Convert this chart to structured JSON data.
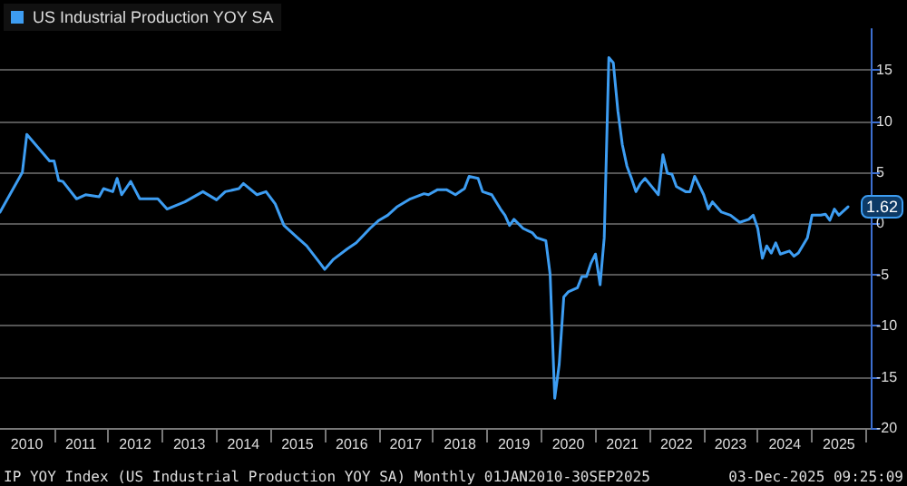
{
  "chart_data": {
    "type": "line",
    "x": [
      "2010-01",
      "2010-06",
      "2010-07",
      "2010-12",
      "2011-01",
      "2011-02",
      "2011-03",
      "2011-06",
      "2011-08",
      "2011-11",
      "2011-12",
      "2012-02",
      "2012-03",
      "2012-04",
      "2012-06",
      "2012-08",
      "2012-12",
      "2013-02",
      "2013-06",
      "2013-10",
      "2014-01",
      "2014-03",
      "2014-06",
      "2014-07",
      "2014-10",
      "2014-12",
      "2015-02",
      "2015-04",
      "2015-07",
      "2015-09",
      "2015-12",
      "2016-01",
      "2016-03",
      "2016-06",
      "2016-08",
      "2016-11",
      "2017-01",
      "2017-03",
      "2017-05",
      "2017-08",
      "2017-11",
      "2017-12",
      "2018-02",
      "2018-04",
      "2018-06",
      "2018-08",
      "2018-09",
      "2018-11",
      "2018-12",
      "2019-02",
      "2019-04",
      "2019-05",
      "2019-06",
      "2019-07",
      "2019-09",
      "2019-11",
      "2019-12",
      "2020-02",
      "2020-03",
      "2020-04",
      "2020-05",
      "2020-06",
      "2020-07",
      "2020-09",
      "2020-10",
      "2020-11",
      "2020-12",
      "2021-01",
      "2021-02",
      "2021-03",
      "2021-04",
      "2021-05",
      "2021-06",
      "2021-07",
      "2021-08",
      "2021-09",
      "2021-10",
      "2021-11",
      "2021-12",
      "2022-02",
      "2022-03",
      "2022-04",
      "2022-05",
      "2022-06",
      "2022-07",
      "2022-09",
      "2022-10",
      "2022-11",
      "2023-01",
      "2023-02",
      "2023-03",
      "2023-05",
      "2023-07",
      "2023-09",
      "2023-11",
      "2023-12",
      "2024-01",
      "2024-02",
      "2024-03",
      "2024-04",
      "2024-05",
      "2024-06",
      "2024-08",
      "2024-09",
      "2024-10",
      "2024-12",
      "2025-01",
      "2025-03",
      "2025-04",
      "2025-05",
      "2025-06",
      "2025-07",
      "2025-09"
    ],
    "series": [
      {
        "name": "US Industrial Production YOY SA",
        "color": "#3d9df2",
        "values": [
          1.1,
          5.0,
          8.7,
          6.1,
          6.1,
          4.2,
          4.1,
          2.4,
          2.8,
          2.6,
          3.4,
          3.1,
          4.4,
          2.8,
          4.1,
          2.4,
          2.4,
          1.4,
          2.1,
          3.1,
          2.3,
          3.1,
          3.4,
          3.9,
          2.8,
          3.1,
          1.9,
          -0.2,
          -1.4,
          -2.2,
          -3.9,
          -4.5,
          -3.5,
          -2.5,
          -1.9,
          -0.5,
          0.3,
          0.8,
          1.6,
          2.4,
          2.9,
          2.8,
          3.3,
          3.3,
          2.8,
          3.4,
          4.6,
          4.4,
          3.1,
          2.8,
          1.4,
          0.8,
          -0.2,
          0.4,
          -0.5,
          -0.9,
          -1.4,
          -1.7,
          -5.0,
          -17.1,
          -13.8,
          -7.2,
          -6.7,
          -6.3,
          -5.2,
          -5.2,
          -3.9,
          -3.0,
          -6.0,
          -1.4,
          16.2,
          15.7,
          11.0,
          7.7,
          5.6,
          4.4,
          3.1,
          3.9,
          4.4,
          3.3,
          2.8,
          6.7,
          4.9,
          4.8,
          3.6,
          3.1,
          3.1,
          4.6,
          2.8,
          1.4,
          2.1,
          1.1,
          0.8,
          0.1,
          0.4,
          0.8,
          -0.5,
          -3.4,
          -2.2,
          -2.9,
          -1.9,
          -3.0,
          -2.7,
          -3.2,
          -2.9,
          -1.4,
          0.8,
          0.8,
          0.9,
          0.3,
          1.4,
          0.8,
          1.62
        ],
        "value_labels": [
          null,
          null,
          null,
          null,
          null,
          null,
          null,
          null,
          null,
          null,
          null,
          null,
          null,
          null,
          null,
          null,
          null,
          null,
          null,
          null,
          null,
          null,
          null,
          null,
          null,
          null,
          null,
          null,
          null,
          null,
          null,
          null,
          null,
          null,
          null,
          null,
          null,
          null,
          null,
          null,
          null,
          null,
          null,
          null,
          null,
          null,
          null,
          null,
          null,
          null,
          null,
          null,
          null,
          null,
          null,
          null,
          null,
          null,
          null,
          null,
          null,
          null,
          null,
          null,
          null,
          null,
          null,
          null,
          null,
          null,
          null,
          null,
          null,
          null,
          null,
          null,
          null,
          null,
          null,
          null,
          null,
          null,
          null,
          null,
          null,
          null,
          null,
          null,
          null,
          null,
          null,
          null,
          null,
          null,
          null,
          null,
          null,
          null,
          null,
          null,
          null,
          null,
          null,
          null,
          null,
          null,
          null,
          null,
          null,
          null,
          null,
          null,
          "1.62"
        ]
      }
    ],
    "xlim": [
      "2010-01",
      "2026-02"
    ],
    "xticks": [
      {
        "value": "2010-07",
        "label": "2010"
      },
      {
        "value": "2011",
        "label": null
      },
      {
        "value": "2011-07",
        "label": "2011"
      },
      {
        "value": "2012",
        "label": null
      },
      {
        "value": "2012-07",
        "label": "2012"
      },
      {
        "value": "2013",
        "label": null
      },
      {
        "value": "2013-07",
        "label": "2013"
      },
      {
        "value": "2014",
        "label": null
      },
      {
        "value": "2014-07",
        "label": "2014"
      },
      {
        "value": "2015",
        "label": null
      },
      {
        "value": "2015-07",
        "label": "2015"
      },
      {
        "value": "2016",
        "label": null
      },
      {
        "value": "2016-07",
        "label": "2016"
      },
      {
        "value": "2017",
        "label": null
      },
      {
        "value": "2017-07",
        "label": "2017"
      },
      {
        "value": "2018",
        "label": null
      },
      {
        "value": "2018-07",
        "label": "2018"
      },
      {
        "value": "2019",
        "label": null
      },
      {
        "value": "2019-07",
        "label": "2019"
      },
      {
        "value": "2020",
        "label": null
      },
      {
        "value": "2020-07",
        "label": "2020"
      },
      {
        "value": "2021",
        "label": null
      },
      {
        "value": "2021-07",
        "label": "2021"
      },
      {
        "value": "2022",
        "label": null
      },
      {
        "value": "2022-07",
        "label": "2022"
      },
      {
        "value": "2023",
        "label": null
      },
      {
        "value": "2023-07",
        "label": "2023"
      },
      {
        "value": "2024",
        "label": null
      },
      {
        "value": "2024-07",
        "label": "2024"
      },
      {
        "value": "2025",
        "label": null
      },
      {
        "value": "2025-07",
        "label": "2025"
      },
      {
        "value": "2026",
        "label": null
      }
    ],
    "ylim": [
      -20,
      19
    ],
    "yticks": [
      -20,
      -15,
      -10,
      -5,
      0,
      5,
      10,
      15
    ],
    "grid": "y",
    "legend": "top left",
    "marker": "none",
    "line_style": "solid",
    "annotations": [
      "IP YOY Index (US Industrial Production YOY SA) Monthly 01JAN2010-30SEP2025",
      "03-Dec-2025 09:25:09"
    ]
  }
}
